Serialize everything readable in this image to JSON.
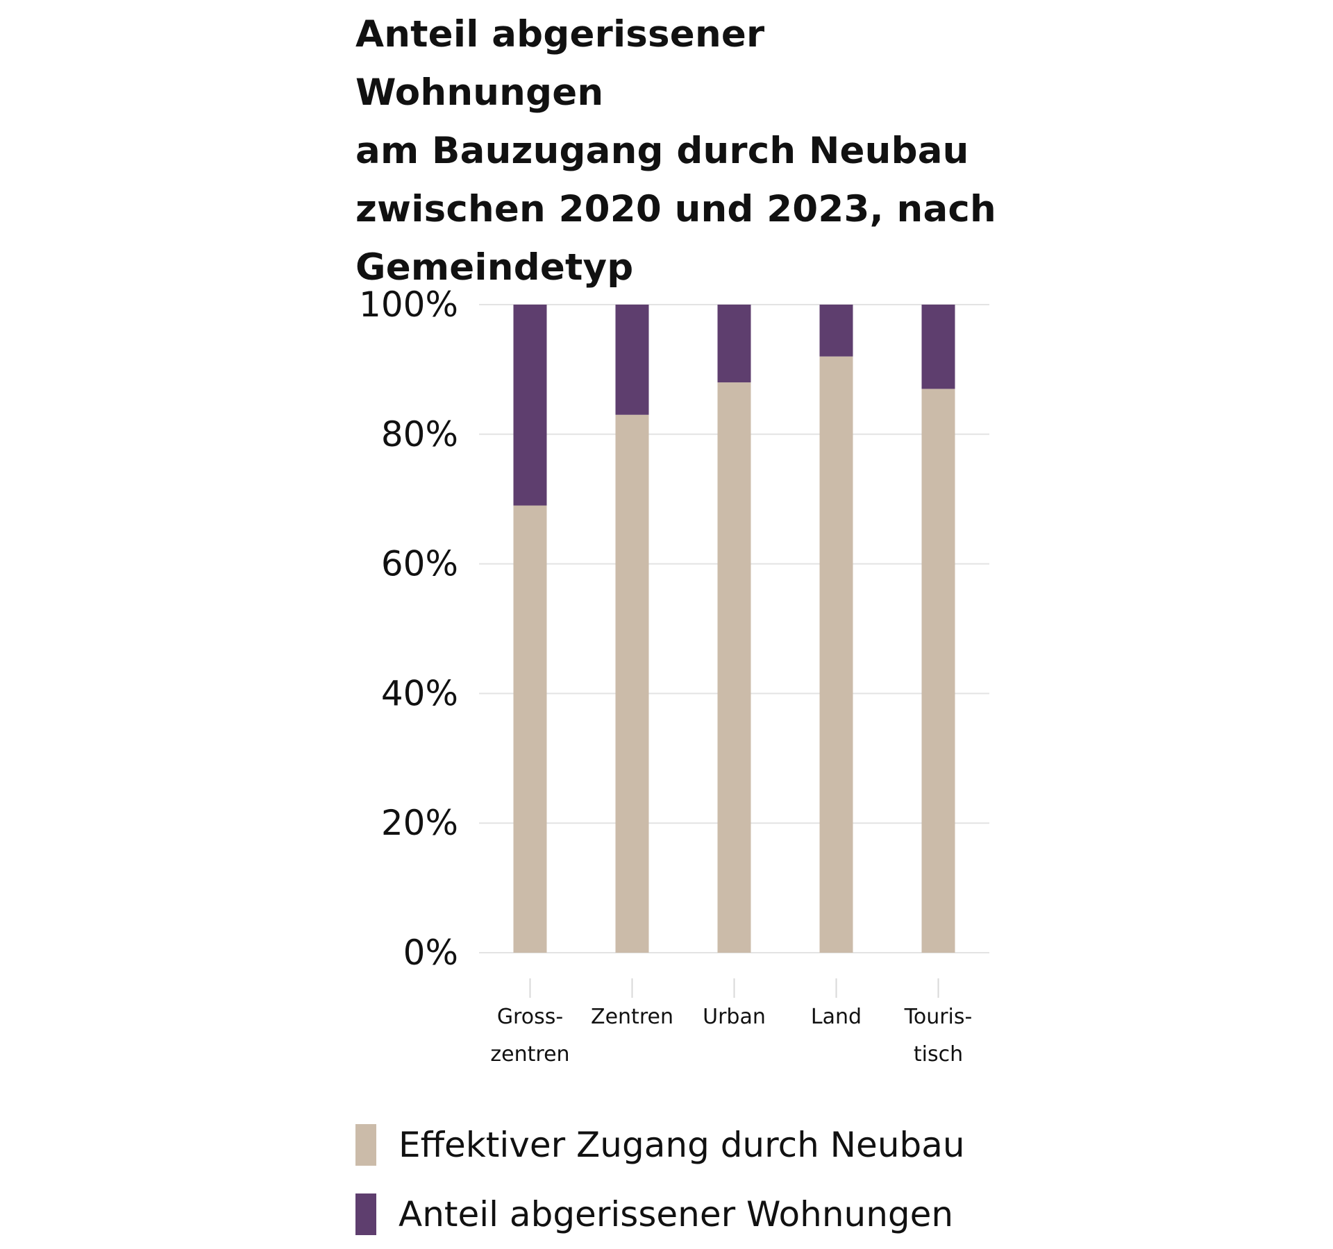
{
  "chart_data": {
    "type": "bar",
    "stacked": true,
    "title": "Anteil abgerissener Wohnungen\nam Bauzugang durch Neubau\nzwischen 2020 und 2023, nach\nGemeindetyp",
    "categories": [
      "Gross-\nzentren",
      "Zentren",
      "Urban",
      "Land",
      "Touris-\ntisch"
    ],
    "series": [
      {
        "name": "Effektiver Zugang durch Neubau",
        "color": "#cbbba9",
        "values": [
          69,
          83,
          88,
          92,
          87
        ]
      },
      {
        "name": "Anteil abgerissener Wohnungen",
        "color": "#5e3e6e",
        "values": [
          31,
          17,
          12,
          8,
          13
        ]
      }
    ],
    "yticks": [
      "0%",
      "20%",
      "40%",
      "60%",
      "80%",
      "100%"
    ],
    "ytick_values": [
      0,
      20,
      40,
      60,
      80,
      100
    ],
    "ylim": [
      0,
      100
    ],
    "grid": true,
    "legend_position": "bottom"
  }
}
